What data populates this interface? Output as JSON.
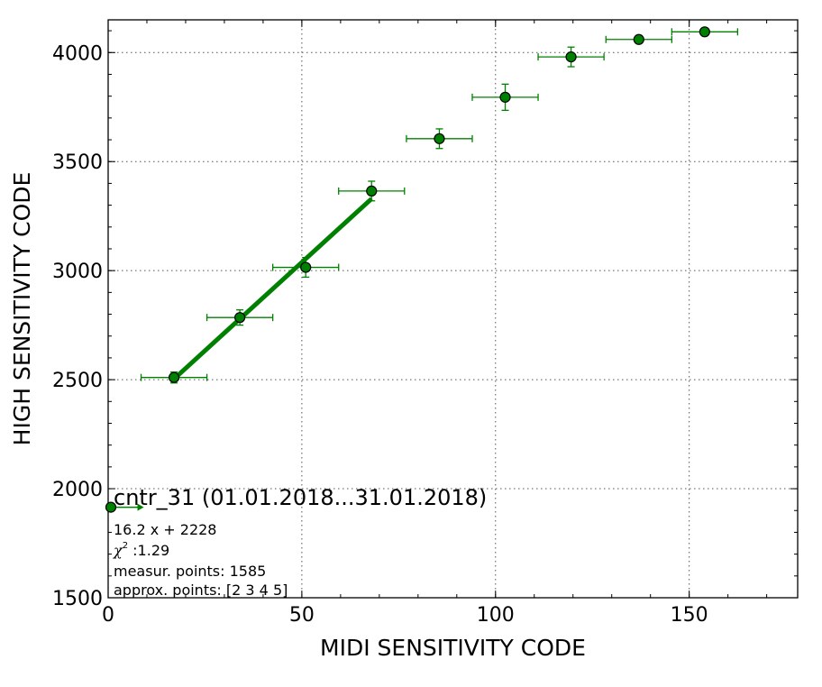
{
  "chart_data": {
    "type": "scatter",
    "xlabel": "MIDI SENSITIVITY CODE",
    "ylabel": "HIGH SENSITIVITY CODE",
    "xlim": [
      0,
      178
    ],
    "ylim": [
      1500,
      4150
    ],
    "x_ticks": [
      0,
      50,
      100,
      150
    ],
    "y_ticks": [
      1500,
      2000,
      2500,
      3000,
      3500,
      4000
    ],
    "x_minor_step": 10,
    "y_minor_step": 100,
    "grid": true,
    "colors": {
      "marker": "#008000",
      "fit_line": "#008000",
      "marker_edge": "#000000"
    },
    "series": [
      {
        "x": [
          17,
          34,
          51,
          68,
          85.5,
          102.5,
          119.5,
          137,
          154
        ],
        "y": [
          2510,
          2785,
          3015,
          3365,
          3605,
          3795,
          3980,
          4060,
          4095
        ],
        "x_err": [
          8.5,
          8.5,
          8.5,
          8.5,
          8.5,
          8.5,
          8.5,
          8.5,
          8.5
        ],
        "y_err": [
          25,
          35,
          45,
          45,
          45,
          60,
          45,
          10,
          10
        ]
      }
    ],
    "fit_line": {
      "x_range": [
        17,
        68
      ],
      "slope": 16.2,
      "intercept": 2228
    },
    "legend_marker": {
      "x": 0,
      "y": 1915,
      "arrow_to_x": 8.5
    },
    "annotation": {
      "title": "cntr_31 (01.01.2018...31.01.2018)",
      "equation": "16.2 x + 2228",
      "chi2_symbol": "χ",
      "chi2_sup": "2",
      "chi2_value": " :1.29",
      "measur_points": "measur. points: 1585",
      "approx_points": "approx. points: [2 3 4 5]"
    }
  }
}
